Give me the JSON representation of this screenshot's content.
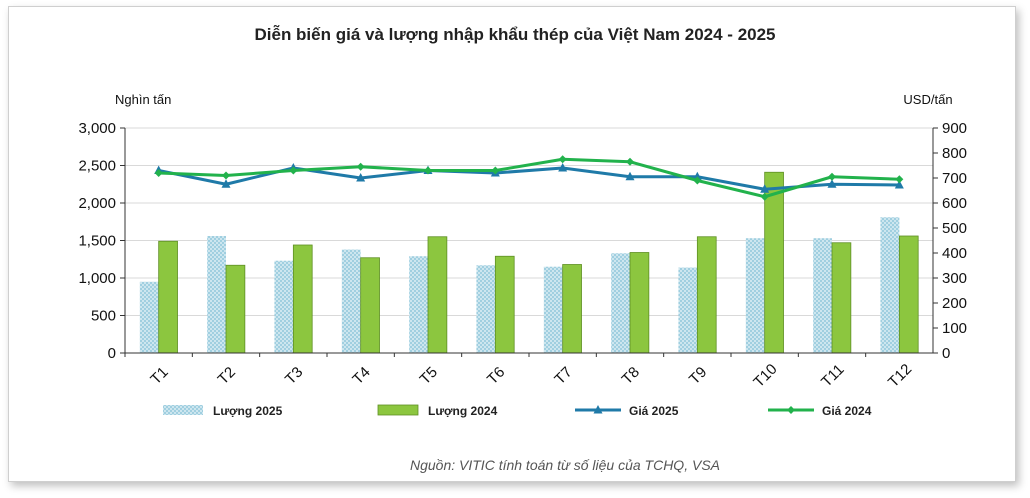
{
  "chart_data": {
    "type": "bar",
    "title": "Diễn biến giá và lượng nhập khẩu thép của Việt Nam 2024 - 2025",
    "ylabel_left": "Nghìn tấn",
    "ylabel_right": "USD/tấn",
    "ylim_left": [
      0,
      3000
    ],
    "ylim_right": [
      0,
      900
    ],
    "yticks_left": [
      "0",
      "500",
      "1,000",
      "1,500",
      "2,000",
      "2,500",
      "3,000"
    ],
    "yticks_right": [
      "0",
      "100",
      "200",
      "300",
      "400",
      "500",
      "600",
      "700",
      "800",
      "900"
    ],
    "categories": [
      "T1",
      "T2",
      "T3",
      "T4",
      "T5",
      "T6",
      "T7",
      "T8",
      "T9",
      "T10",
      "T11",
      "T12"
    ],
    "series": [
      {
        "name": "Lượng 2025",
        "type": "bar",
        "axis": "left",
        "color": "#a9d4e3",
        "values": [
          950,
          1560,
          1230,
          1380,
          1290,
          1170,
          1150,
          1330,
          1140,
          1530,
          1530,
          1810
        ]
      },
      {
        "name": "Lượng 2024",
        "type": "bar",
        "axis": "left",
        "color": "#8cc63f",
        "values": [
          1490,
          1170,
          1440,
          1270,
          1550,
          1290,
          1180,
          1340,
          1550,
          2410,
          1470,
          1560
        ]
      },
      {
        "name": "Giá 2025",
        "type": "line",
        "axis": "right",
        "color": "#1f7aa8",
        "marker": "triangle",
        "values": [
          730,
          675,
          740,
          700,
          730,
          720,
          740,
          705,
          705,
          655,
          675,
          672
        ]
      },
      {
        "name": "Giá 2024",
        "type": "line",
        "axis": "right",
        "color": "#22b24c",
        "marker": "diamond",
        "values": [
          720,
          710,
          730,
          745,
          730,
          730,
          775,
          765,
          690,
          625,
          705,
          695
        ]
      }
    ],
    "legend_position": "bottom",
    "grid": true
  },
  "source_note": "Nguồn: VITIC tính toán từ số liệu của TCHQ, VSA"
}
